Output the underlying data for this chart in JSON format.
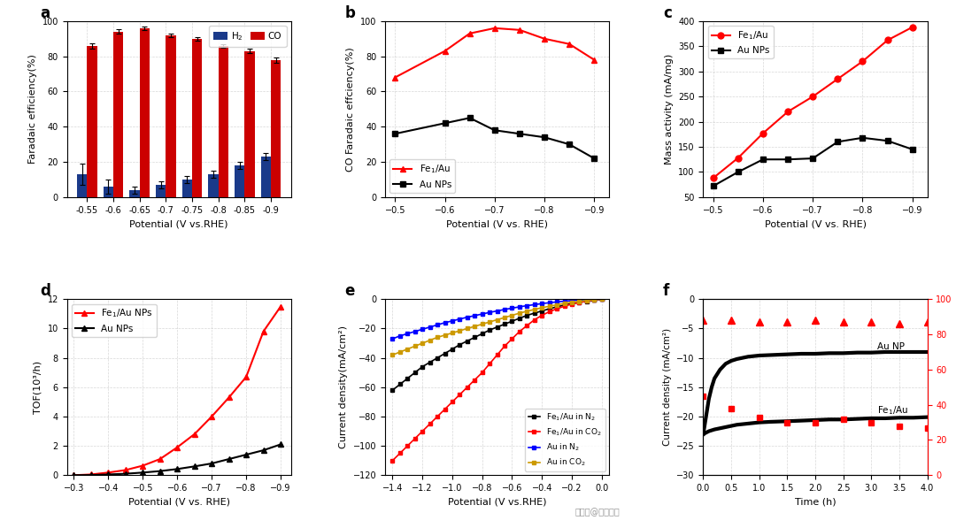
{
  "panel_a": {
    "potentials": [
      "-0.55",
      "-0.6",
      "-0.65",
      "-0.7",
      "-0.75",
      "-0.8",
      "-0.85",
      "-0.9"
    ],
    "CO_values": [
      86,
      94,
      96,
      92,
      90,
      86,
      83,
      78
    ],
    "H2_values": [
      13,
      6,
      4,
      7,
      10,
      13,
      18,
      23
    ],
    "CO_errors": [
      1.5,
      1.2,
      1.0,
      1.0,
      1.0,
      1.0,
      1.2,
      1.5
    ],
    "H2_errors": [
      6,
      4,
      2,
      2,
      2,
      2,
      2,
      2
    ],
    "CO_color": "#cc0000",
    "H2_color": "#1a3a8a",
    "ylabel": "Faradaic efficiency(%)",
    "xlabel": "Potential (V vs.RHE)",
    "ylim": [
      0,
      100
    ],
    "label": "a"
  },
  "panel_b": {
    "Fe1Au_x": [
      -0.5,
      -0.6,
      -0.65,
      -0.7,
      -0.75,
      -0.8,
      -0.85,
      -0.9
    ],
    "Fe1Au_y": [
      68,
      83,
      93,
      96,
      95,
      90,
      87,
      78
    ],
    "AuNPs_x": [
      -0.5,
      -0.6,
      -0.65,
      -0.7,
      -0.75,
      -0.8,
      -0.85,
      -0.9
    ],
    "AuNPs_y": [
      36,
      42,
      45,
      38,
      36,
      34,
      30,
      22
    ],
    "ylabel": "CO Faradaic effciency(%)",
    "xlabel": "Potential (V vs. RHE)",
    "xlim": [
      -0.5,
      -0.92
    ],
    "ylim": [
      0,
      100
    ],
    "label": "b"
  },
  "panel_c": {
    "Fe1Au_x": [
      -0.5,
      -0.55,
      -0.6,
      -0.65,
      -0.7,
      -0.75,
      -0.8,
      -0.85,
      -0.9
    ],
    "Fe1Au_y": [
      88,
      128,
      177,
      220,
      250,
      285,
      320,
      362,
      388
    ],
    "AuNPs_x": [
      -0.5,
      -0.55,
      -0.6,
      -0.65,
      -0.7,
      -0.75,
      -0.8,
      -0.85,
      -0.9
    ],
    "AuNPs_y": [
      72,
      100,
      125,
      125,
      127,
      160,
      168,
      162,
      145
    ],
    "ylabel": "Mass activity (mA/mg)",
    "xlabel": "Potential (V vs. RHE)",
    "xlim": [
      -0.48,
      -0.92
    ],
    "ylim": [
      50,
      400
    ],
    "label": "c"
  },
  "panel_d": {
    "Fe1Au_x": [
      -0.3,
      -0.35,
      -0.4,
      -0.45,
      -0.5,
      -0.55,
      -0.6,
      -0.65,
      -0.7,
      -0.75,
      -0.8,
      -0.85,
      -0.9
    ],
    "Fe1Au_y": [
      0.0,
      0.05,
      0.18,
      0.35,
      0.65,
      1.1,
      1.9,
      2.8,
      4.0,
      5.3,
      6.7,
      9.8,
      11.5
    ],
    "AuNPs_x": [
      -0.3,
      -0.35,
      -0.4,
      -0.45,
      -0.5,
      -0.55,
      -0.6,
      -0.65,
      -0.7,
      -0.75,
      -0.8,
      -0.85,
      -0.9
    ],
    "AuNPs_y": [
      0.0,
      0.01,
      0.05,
      0.1,
      0.18,
      0.28,
      0.42,
      0.6,
      0.8,
      1.1,
      1.4,
      1.7,
      2.1
    ],
    "ylabel": "TOF(10³/h)",
    "xlabel": "Potential (V vs. RHE)",
    "xlim": [
      -0.28,
      -0.92
    ],
    "ylim": [
      0,
      12
    ],
    "label": "d"
  },
  "panel_e": {
    "Fe1Au_N2_x": [
      -1.4,
      -1.35,
      -1.3,
      -1.25,
      -1.2,
      -1.15,
      -1.1,
      -1.05,
      -1.0,
      -0.95,
      -0.9,
      -0.85,
      -0.8,
      -0.75,
      -0.7,
      -0.65,
      -0.6,
      -0.55,
      -0.5,
      -0.45,
      -0.4,
      -0.35,
      -0.3,
      -0.25,
      -0.2,
      -0.15,
      -0.1,
      -0.05,
      0.0
    ],
    "Fe1Au_N2_y": [
      -62,
      -58,
      -54,
      -50,
      -46,
      -43,
      -40,
      -37,
      -34,
      -31,
      -28.5,
      -26,
      -23.5,
      -21,
      -19,
      -17,
      -15,
      -13,
      -11,
      -9.5,
      -8,
      -6.5,
      -5.2,
      -4.0,
      -3.0,
      -2.1,
      -1.4,
      -0.7,
      0.0
    ],
    "Fe1Au_CO2_x": [
      -1.4,
      -1.35,
      -1.3,
      -1.25,
      -1.2,
      -1.15,
      -1.1,
      -1.05,
      -1.0,
      -0.95,
      -0.9,
      -0.85,
      -0.8,
      -0.75,
      -0.7,
      -0.65,
      -0.6,
      -0.55,
      -0.5,
      -0.45,
      -0.4,
      -0.35,
      -0.3,
      -0.25,
      -0.2,
      -0.15,
      -0.1,
      -0.05,
      0.0
    ],
    "Fe1Au_CO2_y": [
      -110,
      -105,
      -100,
      -95,
      -90,
      -85,
      -80,
      -75,
      -70,
      -65,
      -60,
      -55,
      -50,
      -44,
      -38,
      -32,
      -27,
      -22,
      -18,
      -14,
      -11,
      -8.5,
      -6.5,
      -4.8,
      -3.3,
      -2.2,
      -1.3,
      -0.5,
      0.0
    ],
    "Au_N2_x": [
      -1.4,
      -1.35,
      -1.3,
      -1.25,
      -1.2,
      -1.15,
      -1.1,
      -1.05,
      -1.0,
      -0.95,
      -0.9,
      -0.85,
      -0.8,
      -0.75,
      -0.7,
      -0.65,
      -0.6,
      -0.55,
      -0.5,
      -0.45,
      -0.4,
      -0.35,
      -0.3,
      -0.25,
      -0.2,
      -0.15,
      -0.1,
      -0.05,
      0.0
    ],
    "Au_N2_y": [
      -27,
      -25,
      -23.5,
      -22,
      -20.5,
      -19,
      -17.5,
      -16,
      -14.8,
      -13.5,
      -12.3,
      -11.2,
      -10.1,
      -9.0,
      -8.0,
      -7.0,
      -6.1,
      -5.2,
      -4.4,
      -3.7,
      -3.0,
      -2.4,
      -1.85,
      -1.35,
      -0.95,
      -0.6,
      -0.35,
      -0.15,
      0.0
    ],
    "Au_CO2_x": [
      -1.4,
      -1.35,
      -1.3,
      -1.25,
      -1.2,
      -1.15,
      -1.1,
      -1.05,
      -1.0,
      -0.95,
      -0.9,
      -0.85,
      -0.8,
      -0.75,
      -0.7,
      -0.65,
      -0.6,
      -0.55,
      -0.5,
      -0.45,
      -0.4,
      -0.35,
      -0.3,
      -0.25,
      -0.2,
      -0.15,
      -0.1,
      -0.05,
      0.0
    ],
    "Au_CO2_y": [
      -38,
      -36,
      -34,
      -32,
      -30,
      -28,
      -26,
      -24.5,
      -23,
      -21.5,
      -20,
      -18.5,
      -17,
      -15.5,
      -14,
      -12.5,
      -11,
      -9.5,
      -8.2,
      -7.0,
      -5.8,
      -4.8,
      -3.8,
      -2.9,
      -2.1,
      -1.5,
      -0.9,
      -0.4,
      0.0
    ],
    "ylabel": "Current density(mA/cm²)",
    "xlabel": "Potential (V vs.RHE)",
    "xlim": [
      -1.45,
      0.05
    ],
    "ylim": [
      -120,
      0
    ],
    "label": "e"
  },
  "panel_f": {
    "time": [
      0.0,
      0.1,
      0.2,
      0.3,
      0.4,
      0.5,
      0.6,
      0.7,
      0.8,
      0.9,
      1.0,
      1.2,
      1.5,
      1.75,
      2.0,
      2.25,
      2.5,
      2.75,
      3.0,
      3.25,
      3.5,
      3.75,
      4.0
    ],
    "Fe1Au_current": [
      -23,
      -22.5,
      -22.2,
      -22.0,
      -21.8,
      -21.6,
      -21.4,
      -21.3,
      -21.2,
      -21.1,
      -21.0,
      -20.9,
      -20.8,
      -20.7,
      -20.6,
      -20.5,
      -20.5,
      -20.4,
      -20.3,
      -20.3,
      -20.2,
      -20.2,
      -20.1
    ],
    "AuNP_time": [
      0.0,
      0.05,
      0.1,
      0.15,
      0.2,
      0.3,
      0.4,
      0.5,
      0.6,
      0.7,
      0.8,
      0.9,
      1.0,
      1.25,
      1.5,
      1.75,
      2.0,
      2.25,
      2.5,
      2.75,
      3.0,
      3.25,
      3.5,
      3.75,
      4.0
    ],
    "AuNP_current": [
      -23,
      -20,
      -17,
      -15,
      -13.5,
      -12,
      -11,
      -10.5,
      -10.2,
      -10.0,
      -9.8,
      -9.7,
      -9.6,
      -9.5,
      -9.4,
      -9.3,
      -9.3,
      -9.2,
      -9.2,
      -9.1,
      -9.1,
      -9.0,
      -9.0,
      -9.0,
      -9.0
    ],
    "FE_time": [
      0.0,
      0.5,
      1.0,
      1.5,
      2.0,
      2.5,
      3.0,
      3.5,
      4.0
    ],
    "Fe1Au_FE": [
      88,
      88,
      87,
      87,
      88,
      87,
      87,
      86,
      87
    ],
    "AuNP_FE": [
      45,
      38,
      33,
      30,
      30,
      32,
      30,
      28,
      27
    ],
    "ylabel_left": "Current density (mA/cm²)",
    "ylabel_right": "CO Faradaic efficiency(%)",
    "xlabel": "Time (h)",
    "ylim_left": [
      -30,
      0
    ],
    "ylim_right": [
      0,
      100
    ],
    "label": "f"
  },
  "watermark": "泡泡号@研之成理"
}
